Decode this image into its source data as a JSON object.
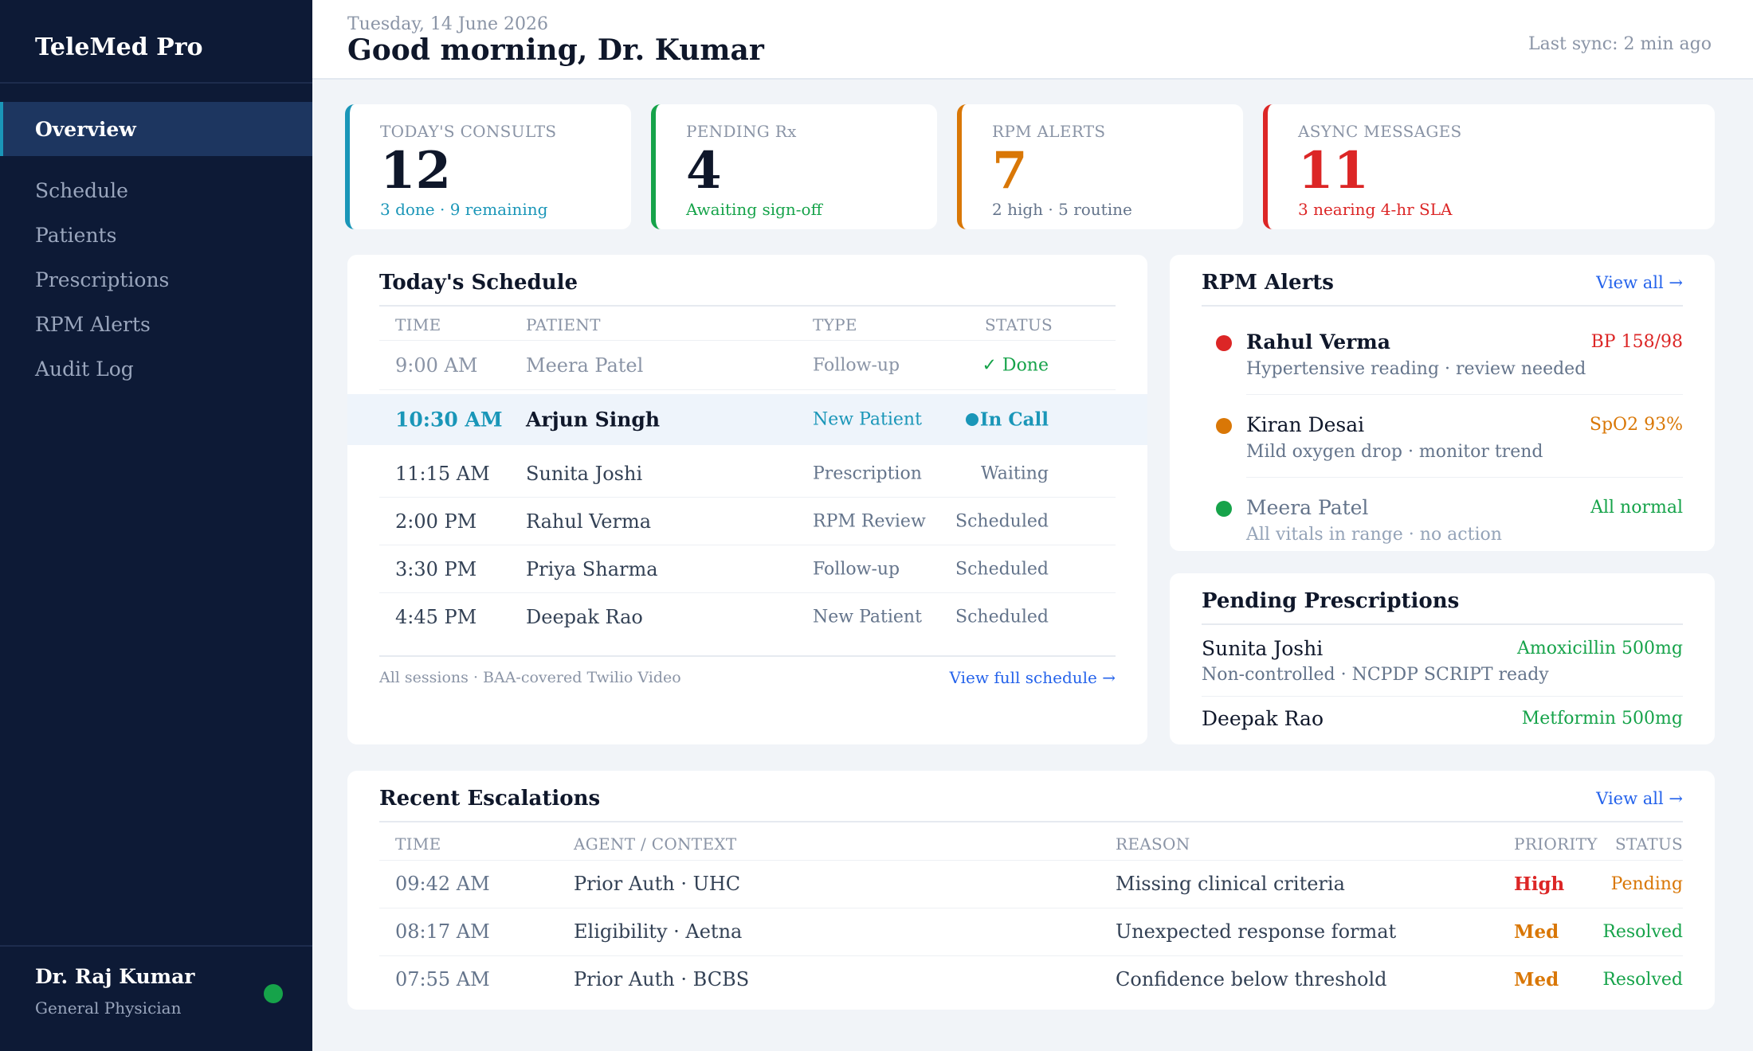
{
  "sidebar": {
    "brand": "TeleMed Pro",
    "nav": [
      {
        "label": "Overview",
        "active": true
      },
      {
        "label": "Schedule"
      },
      {
        "label": "Patients"
      },
      {
        "label": "Prescriptions"
      },
      {
        "label": "RPM Alerts"
      },
      {
        "label": "Audit Log"
      }
    ],
    "user": {
      "name": "Dr. Raj Kumar",
      "role": "General Physician",
      "status_color": "#16a34a"
    }
  },
  "header": {
    "date": "Tuesday, 14 June 2026",
    "greeting": "Good morning, Dr. Kumar",
    "sync": "Last sync: 2 min ago"
  },
  "stats": [
    {
      "label": "TODAY'S CONSULTS",
      "value": "12",
      "sub": "3 done · 9 remaining",
      "accent": "#1a96b8",
      "value_color": "#0f172a",
      "sub_color": "#1a96b8"
    },
    {
      "label": "PENDING Rx",
      "value": "4",
      "sub": "Awaiting sign-off",
      "accent": "#16a34a",
      "value_color": "#0f172a",
      "sub_color": "#16a34a"
    },
    {
      "label": "RPM ALERTS",
      "value": "7",
      "sub": "2 high · 5 routine",
      "accent": "#d97706",
      "value_color": "#d97706",
      "sub_color": "#64748b"
    },
    {
      "label": "ASYNC MESSAGES",
      "value": "11",
      "sub": "3 nearing 4-hr SLA",
      "accent": "#dc2626",
      "value_color": "#dc2626",
      "sub_color": "#dc2626"
    }
  ],
  "schedule": {
    "title": "Today's Schedule",
    "headers": {
      "time": "TIME",
      "patient": "PATIENT",
      "type": "TYPE",
      "status": "STATUS"
    },
    "rows": [
      {
        "time": "9:00 AM",
        "patient": "Meera Patel",
        "type": "Follow-up",
        "status": "✓ Done",
        "state": "done"
      },
      {
        "time": "10:30 AM",
        "patient": "Arjun Singh",
        "type": "New Patient",
        "status": "In Call",
        "state": "active"
      },
      {
        "time": "11:15 AM",
        "patient": "Sunita Joshi",
        "type": "Prescription",
        "status": "Waiting",
        "state": "normal"
      },
      {
        "time": "2:00 PM",
        "patient": "Rahul Verma",
        "type": "RPM Review",
        "status": "Scheduled",
        "state": "normal"
      },
      {
        "time": "3:30 PM",
        "patient": "Priya Sharma",
        "type": "Follow-up",
        "status": "Scheduled",
        "state": "normal"
      },
      {
        "time": "4:45 PM",
        "patient": "Deepak Rao",
        "type": "New Patient",
        "status": "Scheduled",
        "state": "normal"
      }
    ],
    "footer_note": "All sessions · BAA-covered Twilio Video",
    "footer_link": "View full schedule →"
  },
  "rpm_alerts": {
    "title": "RPM Alerts",
    "link": "View all →",
    "items": [
      {
        "name": "Rahul Verma",
        "value": "BP 158/98",
        "desc": "Hypertensive reading · review needed",
        "color": "#dc2626",
        "bold": true
      },
      {
        "name": "Kiran Desai",
        "value": "SpO2 93%",
        "desc": "Mild oxygen drop · monitor trend",
        "color": "#d97706",
        "bold": false
      },
      {
        "name": "Meera Patel",
        "value": "All normal",
        "desc": "All vitals in range · no action",
        "color": "#16a34a",
        "bold": false
      }
    ]
  },
  "prescriptions": {
    "title": "Pending Prescriptions",
    "items": [
      {
        "patient": "Sunita Joshi",
        "drug": "Amoxicillin 500mg",
        "desc": "Non-controlled · NCPDP SCRIPT ready"
      },
      {
        "patient": "Deepak Rao",
        "drug": "Metformin 500mg",
        "desc": ""
      }
    ]
  },
  "escalations": {
    "title": "Recent Escalations",
    "link": "View all →",
    "headers": {
      "time": "TIME",
      "agent": "AGENT / CONTEXT",
      "reason": "REASON",
      "priority": "PRIORITY",
      "status": "STATUS"
    },
    "rows": [
      {
        "time": "09:42 AM",
        "agent": "Prior Auth · UHC",
        "reason": "Missing clinical criteria",
        "priority": "High",
        "status": "Pending",
        "priority_color": "#dc2626",
        "status_color": "#d97706"
      },
      {
        "time": "08:17 AM",
        "agent": "Eligibility · Aetna",
        "reason": "Unexpected response format",
        "priority": "Med",
        "status": "Resolved",
        "priority_color": "#d97706",
        "status_color": "#16a34a"
      },
      {
        "time": "07:55 AM",
        "agent": "Prior Auth · BCBS",
        "reason": "Confidence below threshold",
        "priority": "Med",
        "status": "Resolved",
        "priority_color": "#d97706",
        "status_color": "#16a34a"
      }
    ]
  }
}
